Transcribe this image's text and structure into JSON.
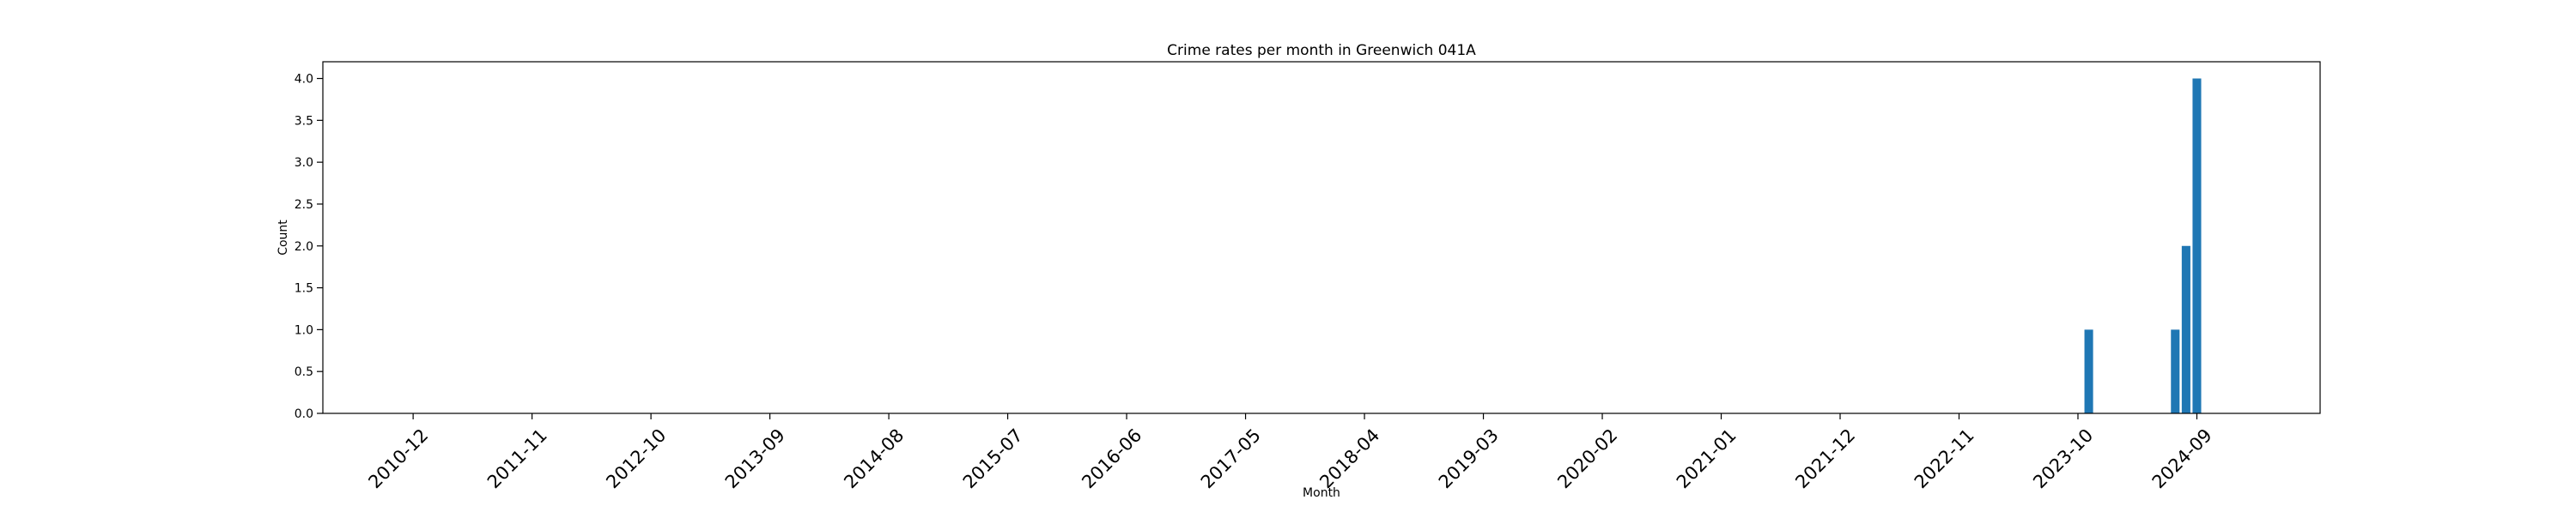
{
  "chart_data": {
    "type": "bar",
    "title": "Crime rates per month in Greenwich 041A",
    "xlabel": "Month",
    "ylabel": "Count",
    "x_tick_labels": [
      "2010-12",
      "2011-11",
      "2012-10",
      "2013-09",
      "2014-08",
      "2015-07",
      "2016-06",
      "2017-05",
      "2018-04",
      "2019-03",
      "2020-02",
      "2021-01",
      "2021-12",
      "2022-11",
      "2023-10",
      "2024-09"
    ],
    "y_ticks": [
      "0.0",
      "0.5",
      "1.0",
      "1.5",
      "2.0",
      "2.5",
      "3.0",
      "3.5",
      "4.0"
    ],
    "ylim": [
      0,
      4.2
    ],
    "x_range": [
      "2010-04",
      "2025-08"
    ],
    "bars": [
      {
        "month": "2023-11",
        "value": 1
      },
      {
        "month": "2024-07",
        "value": 1
      },
      {
        "month": "2024-08",
        "value": 2
      },
      {
        "month": "2024-09",
        "value": 4
      }
    ],
    "bar_color": "#1f77b4",
    "grid": false,
    "legend": "none"
  }
}
